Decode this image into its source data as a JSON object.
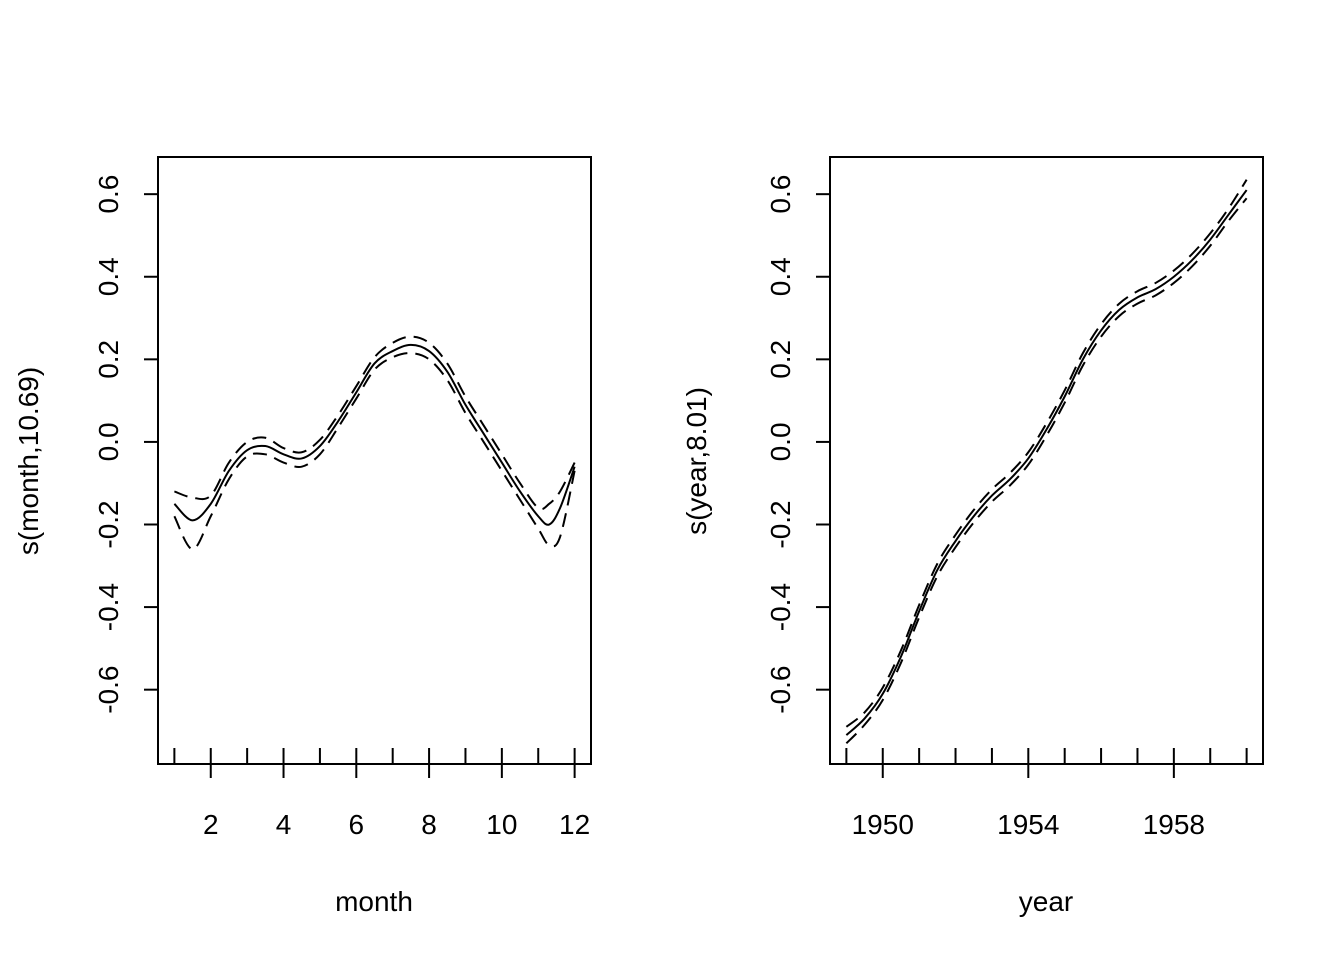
{
  "chart_data": [
    {
      "type": "line",
      "xlabel": "month",
      "ylabel": "s(month,10.69)",
      "xlim": [
        0.55,
        12.45
      ],
      "ylim": [
        -0.78,
        0.69
      ],
      "xticks": [
        2,
        4,
        6,
        8,
        10,
        12
      ],
      "yticks": [
        -0.6,
        -0.4,
        -0.2,
        0.0,
        0.2,
        0.4,
        0.6
      ],
      "ytick_labels": [
        "-0.6",
        "-0.4",
        "-0.2",
        "0.0",
        "0.2",
        "0.4",
        "0.6"
      ],
      "rug": [
        1,
        2,
        3,
        4,
        5,
        6,
        7,
        8,
        9,
        10,
        11,
        12
      ],
      "x": [
        1.0,
        1.5,
        2.0,
        2.5,
        3.0,
        3.5,
        4.0,
        4.5,
        5.0,
        5.5,
        6.0,
        6.5,
        7.0,
        7.5,
        8.0,
        8.5,
        9.0,
        9.5,
        10.0,
        10.5,
        11.0,
        11.3,
        11.6,
        12.0
      ],
      "series": [
        {
          "style": "solid",
          "values": [
            -0.15,
            -0.19,
            -0.15,
            -0.07,
            -0.02,
            -0.01,
            -0.03,
            -0.04,
            -0.01,
            0.05,
            0.12,
            0.19,
            0.22,
            0.235,
            0.22,
            0.17,
            0.09,
            0.02,
            -0.05,
            -0.12,
            -0.18,
            -0.2,
            -0.16,
            -0.06
          ]
        },
        {
          "style": "dashed",
          "values": [
            -0.12,
            -0.135,
            -0.13,
            -0.05,
            0.0,
            0.01,
            -0.015,
            -0.025,
            0.005,
            0.065,
            0.135,
            0.205,
            0.24,
            0.255,
            0.24,
            0.19,
            0.11,
            0.04,
            -0.03,
            -0.1,
            -0.16,
            -0.15,
            -0.12,
            -0.05
          ]
        },
        {
          "style": "dashed",
          "values": [
            -0.18,
            -0.26,
            -0.18,
            -0.09,
            -0.035,
            -0.03,
            -0.05,
            -0.06,
            -0.03,
            0.035,
            0.105,
            0.175,
            0.205,
            0.215,
            0.2,
            0.15,
            0.07,
            0.0,
            -0.07,
            -0.14,
            -0.21,
            -0.25,
            -0.23,
            -0.07
          ]
        }
      ]
    },
    {
      "type": "line",
      "xlabel": "year",
      "ylabel": "s(year,8.01)",
      "xlim": [
        1948.55,
        1960.45
      ],
      "ylim": [
        -0.78,
        0.69
      ],
      "xticks": [
        1950,
        1954,
        1958
      ],
      "yticks": [
        -0.6,
        -0.4,
        -0.2,
        0.0,
        0.2,
        0.4,
        0.6
      ],
      "ytick_labels": [
        "-0.6",
        "-0.4",
        "-0.2",
        "0.0",
        "0.2",
        "0.4",
        "0.6"
      ],
      "rug": [
        1949,
        1950,
        1951,
        1952,
        1953,
        1954,
        1955,
        1956,
        1957,
        1958,
        1959,
        1960
      ],
      "x": [
        1949.0,
        1949.5,
        1950.0,
        1950.5,
        1951.0,
        1951.5,
        1952.0,
        1952.5,
        1953.0,
        1953.5,
        1954.0,
        1954.5,
        1955.0,
        1955.5,
        1956.0,
        1956.5,
        1957.0,
        1957.5,
        1958.0,
        1958.5,
        1959.0,
        1959.5,
        1960.0
      ],
      "series": [
        {
          "style": "solid",
          "values": [
            -0.71,
            -0.67,
            -0.61,
            -0.52,
            -0.41,
            -0.31,
            -0.24,
            -0.18,
            -0.13,
            -0.09,
            -0.04,
            0.03,
            0.11,
            0.2,
            0.27,
            0.32,
            0.35,
            0.37,
            0.4,
            0.44,
            0.49,
            0.55,
            0.61
          ]
        },
        {
          "style": "dashed",
          "values": [
            -0.69,
            -0.655,
            -0.595,
            -0.505,
            -0.395,
            -0.295,
            -0.225,
            -0.165,
            -0.115,
            -0.075,
            -0.025,
            0.045,
            0.125,
            0.215,
            0.285,
            0.335,
            0.365,
            0.385,
            0.415,
            0.455,
            0.505,
            0.565,
            0.635
          ]
        },
        {
          "style": "dashed",
          "values": [
            -0.73,
            -0.685,
            -0.625,
            -0.535,
            -0.425,
            -0.325,
            -0.255,
            -0.195,
            -0.145,
            -0.105,
            -0.055,
            0.015,
            0.095,
            0.185,
            0.255,
            0.305,
            0.335,
            0.355,
            0.385,
            0.425,
            0.475,
            0.535,
            0.59
          ]
        }
      ]
    }
  ]
}
